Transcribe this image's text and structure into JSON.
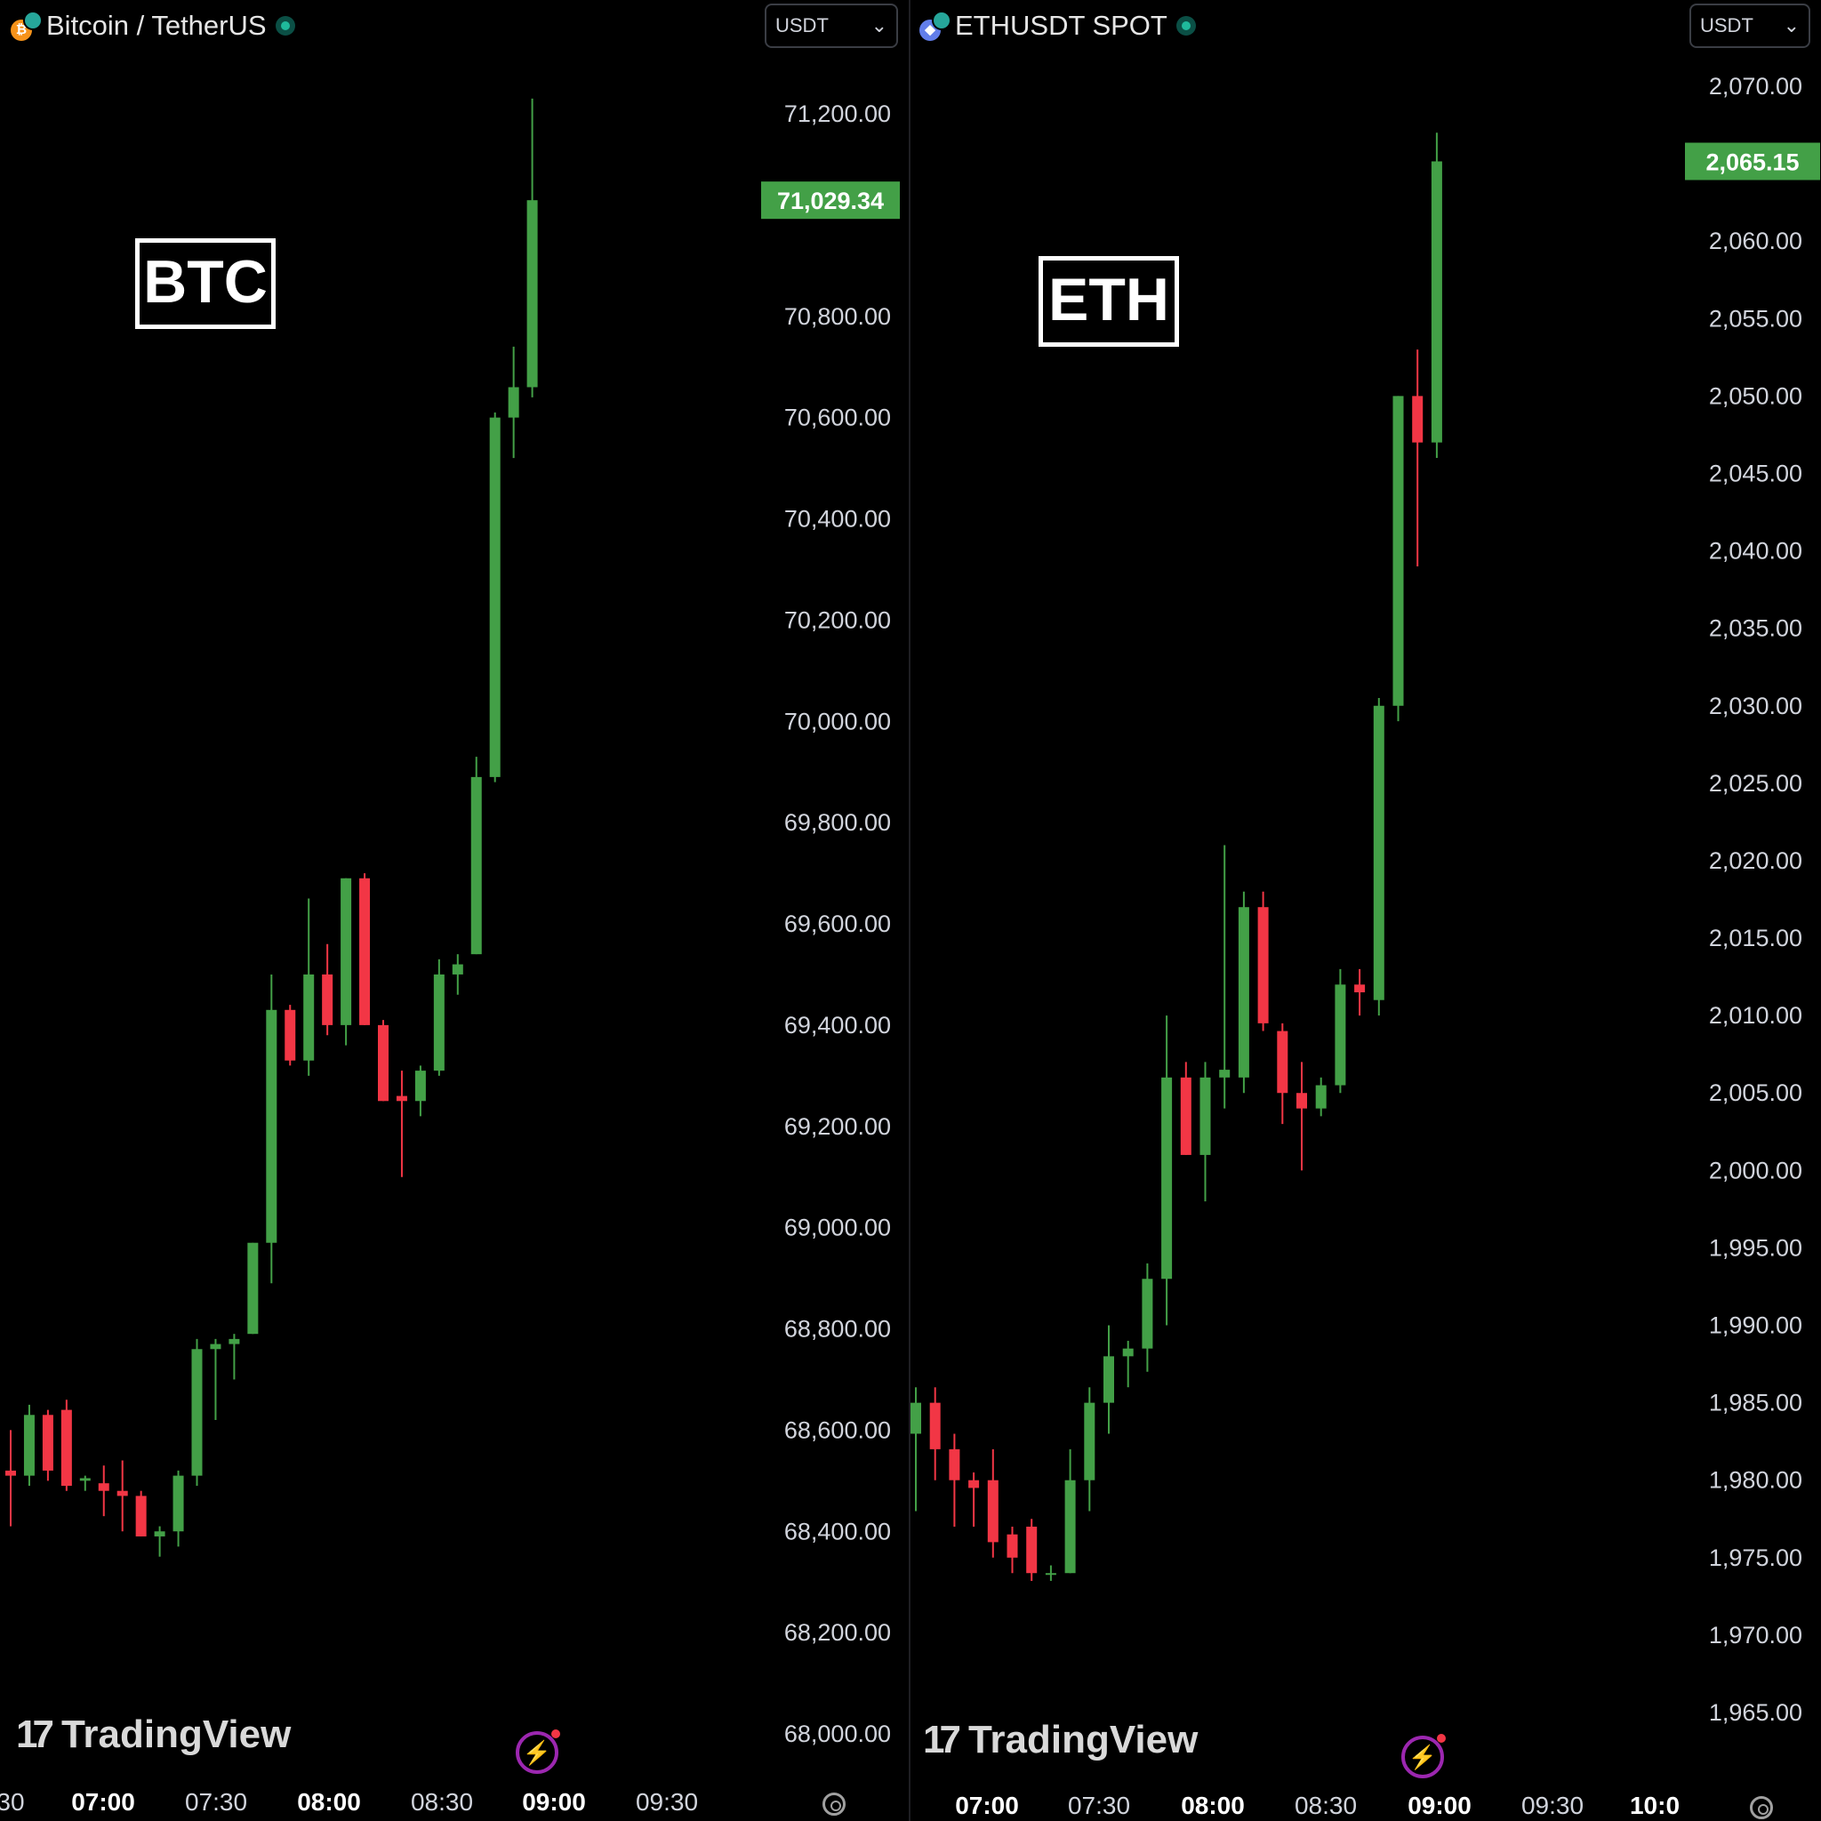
{
  "colors": {
    "up": "#43a047",
    "down": "#f23645",
    "axis_text": "#d1d4dc",
    "background": "#000000",
    "price_tag_bg": "#43a047",
    "price_tag_text": "#ffffff"
  },
  "chart_data": [
    {
      "type": "candlestick",
      "symbol": "Bitcoin / TetherUS",
      "currency": "USDT",
      "annotation": "BTC",
      "last_price_label": "71,029.34",
      "last_price": 71029.34,
      "y_ticks": [
        "71,200.00",
        "70,800.00",
        "70,600.00",
        "70,400.00",
        "70,200.00",
        "70,000.00",
        "69,800.00",
        "69,600.00",
        "69,400.00",
        "69,200.00",
        "69,000.00",
        "68,800.00",
        "68,600.00",
        "68,400.00",
        "68,200.00",
        "68,000.00"
      ],
      "x_ticks": [
        {
          "label": "30",
          "bold": false
        },
        {
          "label": "07:00",
          "bold": true
        },
        {
          "label": "07:30",
          "bold": false
        },
        {
          "label": "08:00",
          "bold": true
        },
        {
          "label": "08:30",
          "bold": false
        },
        {
          "label": "09:00",
          "bold": true
        },
        {
          "label": "09:30",
          "bold": false
        }
      ],
      "ylim": [
        68000,
        71200
      ],
      "candles": [
        [
          68520,
          68600,
          68410,
          68510
        ],
        [
          68510,
          68650,
          68490,
          68630
        ],
        [
          68630,
          68640,
          68500,
          68520
        ],
        [
          68640,
          68660,
          68480,
          68490
        ],
        [
          68500,
          68510,
          68480,
          68505
        ],
        [
          68495,
          68530,
          68430,
          68480
        ],
        [
          68480,
          68540,
          68400,
          68470
        ],
        [
          68470,
          68480,
          68390,
          68390
        ],
        [
          68390,
          68410,
          68350,
          68400
        ],
        [
          68400,
          68520,
          68370,
          68510
        ],
        [
          68510,
          68780,
          68490,
          68760
        ],
        [
          68760,
          68780,
          68620,
          68770
        ],
        [
          68770,
          68790,
          68700,
          68780
        ],
        [
          68790,
          68970,
          68790,
          68970
        ],
        [
          68970,
          69500,
          68890,
          69430
        ],
        [
          69430,
          69440,
          69320,
          69330
        ],
        [
          69330,
          69650,
          69300,
          69500
        ],
        [
          69500,
          69560,
          69380,
          69400
        ],
        [
          69400,
          69690,
          69360,
          69690
        ],
        [
          69690,
          69700,
          69400,
          69400
        ],
        [
          69400,
          69410,
          69250,
          69250
        ],
        [
          69260,
          69310,
          69100,
          69250
        ],
        [
          69250,
          69320,
          69220,
          69310
        ],
        [
          69310,
          69530,
          69300,
          69500
        ],
        [
          69500,
          69540,
          69460,
          69520
        ],
        [
          69540,
          69930,
          69540,
          69890
        ],
        [
          69890,
          70610,
          69880,
          70600
        ],
        [
          70600,
          70740,
          70520,
          70660
        ],
        [
          70660,
          71230,
          70640,
          71029.34
        ]
      ]
    },
    {
      "type": "candlestick",
      "symbol": "ETHUSDT SPOT",
      "currency": "USDT",
      "annotation": "ETH",
      "last_price_label": "2,065.15",
      "last_price": 2065.15,
      "y_ticks": [
        "2,070.00",
        "2,060.00",
        "2,055.00",
        "2,050.00",
        "2,045.00",
        "2,040.00",
        "2,035.00",
        "2,030.00",
        "2,025.00",
        "2,020.00",
        "2,015.00",
        "2,010.00",
        "2,005.00",
        "2,000.00",
        "1,995.00",
        "1,990.00",
        "1,985.00",
        "1,980.00",
        "1,975.00",
        "1,970.00",
        "1,965.00"
      ],
      "x_ticks": [
        {
          "label": "07:00",
          "bold": true
        },
        {
          "label": "07:30",
          "bold": false
        },
        {
          "label": "08:00",
          "bold": true
        },
        {
          "label": "08:30",
          "bold": false
        },
        {
          "label": "09:00",
          "bold": true
        },
        {
          "label": "09:30",
          "bold": false
        },
        {
          "label": "10:0",
          "bold": true
        }
      ],
      "ylim": [
        1965,
        2070
      ],
      "candles": [
        [
          1983,
          1986,
          1978,
          1985
        ],
        [
          1985,
          1986,
          1980,
          1982
        ],
        [
          1982,
          1983,
          1977,
          1980
        ],
        [
          1980,
          1980.5,
          1977,
          1979.5
        ],
        [
          1980,
          1982,
          1975,
          1976
        ],
        [
          1976.5,
          1977,
          1974,
          1975
        ],
        [
          1977,
          1977.5,
          1973.5,
          1974
        ],
        [
          1974,
          1974.5,
          1973.5,
          1974
        ],
        [
          1974,
          1982,
          1974,
          1980
        ],
        [
          1980,
          1986,
          1978,
          1985
        ],
        [
          1985,
          1990,
          1983,
          1988
        ],
        [
          1988,
          1989,
          1986,
          1988.5
        ],
        [
          1988.5,
          1994,
          1987,
          1993
        ],
        [
          1993,
          2010,
          1990,
          2006
        ],
        [
          2006,
          2007,
          2001,
          2001
        ],
        [
          2001,
          2007,
          1998,
          2006
        ],
        [
          2006,
          2021,
          2004,
          2006.5
        ],
        [
          2006,
          2018,
          2005,
          2017
        ],
        [
          2017,
          2018,
          2009,
          2009.5
        ],
        [
          2009,
          2009.5,
          2003,
          2005
        ],
        [
          2005,
          2007,
          2000,
          2004
        ],
        [
          2004,
          2006,
          2003.5,
          2005.5
        ],
        [
          2005.5,
          2013,
          2005,
          2012
        ],
        [
          2012,
          2013,
          2010,
          2011.5
        ],
        [
          2011,
          2030.5,
          2010,
          2030
        ],
        [
          2030,
          2050,
          2029,
          2050
        ],
        [
          2050,
          2053,
          2039,
          2047
        ],
        [
          2047,
          2067,
          2046,
          2065.15
        ]
      ]
    }
  ],
  "watermark": {
    "brand": "TradingView",
    "mark": "17"
  }
}
